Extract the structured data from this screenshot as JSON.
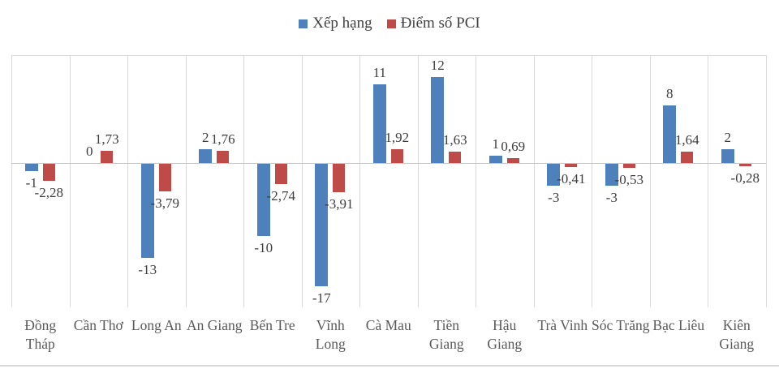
{
  "legend": {
    "series1_label": "Xếp hạng",
    "series2_label": "Điểm số PCI"
  },
  "colors": {
    "ranking_blue": "#4e80bc",
    "pci_red": "#be4b48",
    "gridline": "#d9d9d9",
    "zero_line": "#c6c6c6",
    "label_text": "#3d3d3d",
    "category_text": "#595959"
  },
  "chart_data": {
    "type": "bar",
    "title": "",
    "xlabel": "",
    "ylabel": "",
    "ylim": [
      -20,
      15
    ],
    "grid": "vertical-only",
    "legend_position": "top",
    "decimal_separator": ",",
    "categories": [
      "Đồng Tháp",
      "Cần Thơ",
      "Long An",
      "An Giang",
      "Bến Tre",
      "Vĩnh Long",
      "Cà Mau",
      "Tiền Giang",
      "Hậu Giang",
      "Trà Vinh",
      "Sóc Trăng",
      "Bạc Liêu",
      "Kiên Giang"
    ],
    "series": [
      {
        "name": "Xếp hạng",
        "color": "#4e80bc",
        "values": [
          -1,
          0,
          -13,
          2,
          -10,
          -17,
          11,
          12,
          1,
          -3,
          -3,
          8,
          2
        ],
        "labels": [
          "-1",
          "0",
          "-13",
          "2",
          "-10",
          "-17",
          "11",
          "12",
          "1",
          "-3",
          "-3",
          "8",
          "2"
        ]
      },
      {
        "name": "Điểm số PCI",
        "color": "#be4b48",
        "values": [
          -2.28,
          1.73,
          -3.79,
          1.76,
          -2.74,
          -3.91,
          1.92,
          1.63,
          0.69,
          -0.41,
          -0.53,
          1.64,
          -0.28
        ],
        "labels": [
          "-2,28",
          "1,73",
          "-3,79",
          "1,76",
          "-2,74",
          "-3,91",
          "1,92",
          "1,63",
          "0,69",
          "-0,41",
          "-0,53",
          "1,64",
          "-0,28"
        ]
      }
    ]
  }
}
